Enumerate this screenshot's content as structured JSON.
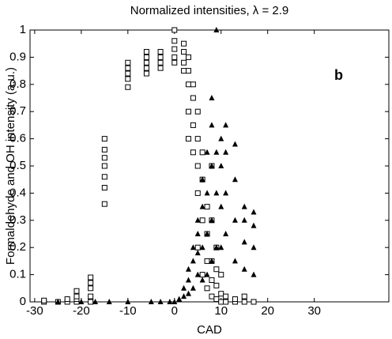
{
  "chart_data": {
    "type": "scatter",
    "title": "Normalized intensities, λ = 2.9",
    "xlabel": "CAD",
    "ylabel": "Formaldehyde and OH intensity (a.u.)",
    "annotation": "b",
    "xlim": [
      -31,
      46
    ],
    "ylim": [
      0,
      1
    ],
    "xticks": [
      -30,
      -20,
      -10,
      0,
      10,
      20,
      30
    ],
    "yticks": [
      0,
      0.1,
      0.2,
      0.3,
      0.4,
      0.5,
      0.6,
      0.7,
      0.8,
      0.9,
      1
    ],
    "series": [
      {
        "marker": "square",
        "color": "#000000",
        "x": [
          -28,
          -28,
          -25,
          -23,
          -23,
          -21,
          -21,
          -21,
          -21,
          -18,
          -18,
          -18,
          -18,
          -18,
          -15,
          -15,
          -15,
          -15,
          -15,
          -15,
          -15,
          -10,
          -10,
          -10,
          -10,
          -10,
          -6,
          -6,
          -6,
          -6,
          -6,
          -3,
          -3,
          -3,
          -3,
          0,
          0,
          0,
          0,
          0,
          2,
          2,
          2,
          2,
          3,
          3,
          3,
          3,
          3,
          4,
          4,
          4,
          4,
          5,
          5,
          5,
          5,
          5,
          6,
          6,
          6,
          6,
          7,
          7,
          7,
          7,
          8,
          8,
          8,
          8,
          8,
          9,
          9,
          9,
          9,
          10,
          10,
          10,
          11,
          11,
          13,
          13,
          15,
          15,
          17
        ],
        "y": [
          0,
          0.005,
          0,
          0,
          0.01,
          0,
          0.01,
          0.02,
          0.04,
          0,
          0.02,
          0.05,
          0.07,
          0.09,
          0.36,
          0.42,
          0.46,
          0.5,
          0.53,
          0.56,
          0.6,
          0.79,
          0.82,
          0.84,
          0.86,
          0.88,
          0.84,
          0.86,
          0.88,
          0.9,
          0.92,
          0.86,
          0.88,
          0.9,
          0.92,
          0.88,
          0.9,
          0.93,
          0.96,
          1,
          0.85,
          0.88,
          0.92,
          0.95,
          0.6,
          0.7,
          0.8,
          0.85,
          0.9,
          0.55,
          0.65,
          0.75,
          0.8,
          0.2,
          0.4,
          0.5,
          0.6,
          0.7,
          0.1,
          0.3,
          0.45,
          0.55,
          0.05,
          0.15,
          0.25,
          0.35,
          0.02,
          0.08,
          0.15,
          0.3,
          0.5,
          0.01,
          0.06,
          0.12,
          0.2,
          0,
          0.03,
          0.1,
          0,
          0.02,
          0,
          0.01,
          0,
          0.02,
          0
        ]
      },
      {
        "marker": "triangle",
        "color": "#000000",
        "x": [
          -25,
          -20,
          -17,
          -14,
          -10,
          -5,
          -3,
          -1,
          0,
          1,
          2,
          2,
          3,
          3,
          3,
          4,
          4,
          4,
          5,
          5,
          5,
          5,
          6,
          6,
          6,
          6,
          7,
          7,
          7,
          7,
          8,
          8,
          8,
          8,
          8,
          9,
          9,
          9,
          9,
          10,
          10,
          10,
          10,
          11,
          11,
          11,
          11,
          13,
          13,
          13,
          13,
          15,
          15,
          15,
          15,
          17,
          17,
          17,
          17
        ],
        "y": [
          0,
          0,
          0,
          0,
          0,
          0,
          0,
          0,
          0,
          0.01,
          0.02,
          0.05,
          0.03,
          0.08,
          0.12,
          0.05,
          0.15,
          0.2,
          0.1,
          0.18,
          0.25,
          0.3,
          0.08,
          0.2,
          0.35,
          0.45,
          0.1,
          0.25,
          0.4,
          0.55,
          0.15,
          0.3,
          0.5,
          0.65,
          0.75,
          0.2,
          0.4,
          0.55,
          1,
          0.2,
          0.35,
          0.5,
          0.6,
          0.25,
          0.4,
          0.55,
          0.65,
          0.15,
          0.3,
          0.45,
          0.58,
          0.12,
          0.22,
          0.3,
          0.35,
          0.1,
          0.2,
          0.28,
          0.33
        ]
      }
    ]
  }
}
